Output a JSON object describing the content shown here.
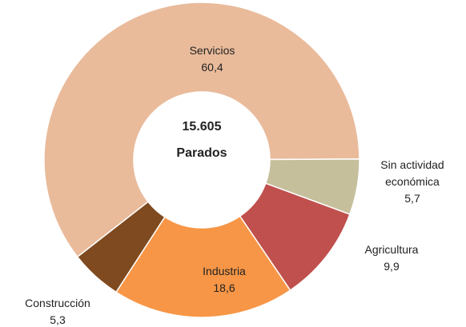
{
  "chart_data": {
    "type": "donut",
    "categories": [
      "Servicios",
      "Sin actividad económica",
      "Agricultura",
      "Industria",
      "Construcción"
    ],
    "values": [
      60.4,
      5.7,
      9.9,
      18.6,
      5.3
    ],
    "value_labels": [
      "60,4",
      "5,7",
      "9,9",
      "18,6",
      "5,3"
    ],
    "colors": [
      "#e9bb9b",
      "#c6bf9b",
      "#c0504d",
      "#f79646",
      "#7f4a1f"
    ],
    "center_text": [
      "15.605",
      "Parados"
    ]
  }
}
